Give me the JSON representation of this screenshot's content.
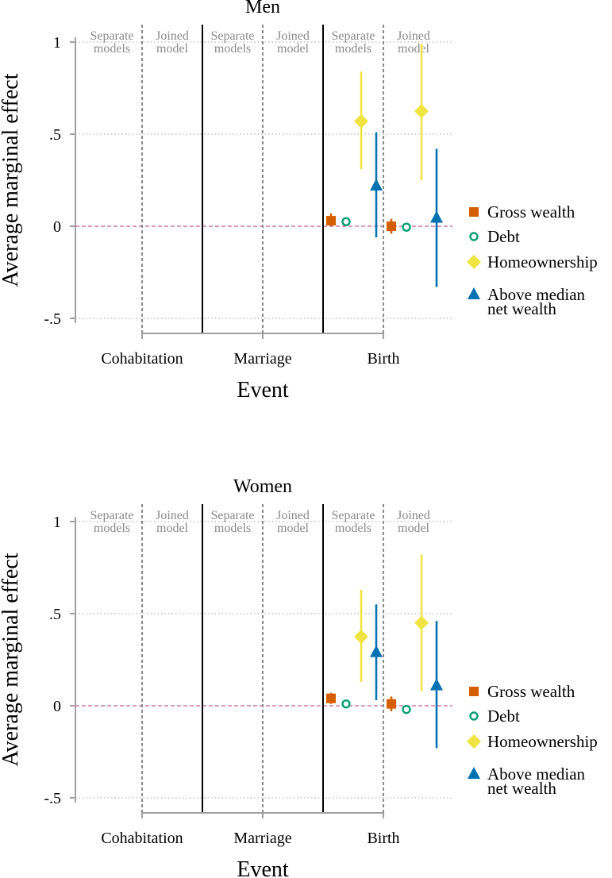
{
  "colors": {
    "gross": "#d55e00",
    "debt": "#009e73",
    "home": "#f0e442",
    "above": "#0072b2",
    "zero_line": "#cc79a7",
    "axis": "#a0a0a0",
    "grid": "#b4b4b4",
    "dotted_divider": "#8a8a8a",
    "solid_divider": "#000000"
  },
  "legend": {
    "gross": "Gross wealth",
    "debt": "Debt",
    "home": "Homeownership",
    "above_line1": "Above median",
    "above_line2": "net wealth"
  },
  "chart_data": [
    {
      "type": "scatter",
      "title": "Men",
      "ylabel": "Average marginal effect",
      "xlabel": "Event",
      "ylim": [
        -0.5,
        1
      ],
      "yticks": [
        {
          "value": 1,
          "label": "1"
        },
        {
          "value": 0.5,
          "label": ".5"
        },
        {
          "value": 0,
          "label": "0"
        },
        {
          "value": -0.5,
          "label": "-.5"
        }
      ],
      "categories": [
        "Cohabitation",
        "Marriage",
        "Birth"
      ],
      "segment_labels": [
        {
          "line1": "Separate",
          "line2": "models"
        },
        {
          "line1": "Joined",
          "line2": "model"
        },
        {
          "line1": "Separate",
          "line2": "models"
        },
        {
          "line1": "Joined",
          "line2": "model"
        },
        {
          "line1": "Separate",
          "line2": "models"
        },
        {
          "line1": "Joined",
          "line2": "model"
        }
      ],
      "series": [
        {
          "name": "Gross wealth",
          "key": "gross",
          "marker": "square",
          "points": [
            {
              "segment": 5,
              "y": 0.03,
              "ci": [
                0.0,
                0.07
              ]
            },
            {
              "segment": 6,
              "y": 0.0,
              "ci": [
                -0.04,
                0.04
              ]
            }
          ]
        },
        {
          "name": "Debt",
          "key": "debt",
          "marker": "hollow-circle",
          "points": [
            {
              "segment": 5,
              "y": 0.025,
              "ci": [
                0.01,
                0.04
              ]
            },
            {
              "segment": 6,
              "y": -0.005,
              "ci": [
                -0.02,
                0.01
              ]
            }
          ]
        },
        {
          "name": "Homeownership",
          "key": "home",
          "marker": "diamond",
          "points": [
            {
              "segment": 5,
              "y": 0.57,
              "ci": [
                0.31,
                0.84
              ]
            },
            {
              "segment": 6,
              "y": 0.625,
              "ci": [
                0.25,
                0.99
              ]
            }
          ]
        },
        {
          "name": "Above median net wealth",
          "key": "above",
          "marker": "triangle",
          "points": [
            {
              "segment": 5,
              "y": 0.22,
              "ci": [
                -0.06,
                0.51
              ]
            },
            {
              "segment": 6,
              "y": 0.045,
              "ci": [
                -0.33,
                0.42
              ]
            }
          ]
        }
      ]
    },
    {
      "type": "scatter",
      "title": "Women",
      "ylabel": "Average marginal effect",
      "xlabel": "Event",
      "ylim": [
        -0.5,
        1
      ],
      "yticks": [
        {
          "value": 1,
          "label": "1"
        },
        {
          "value": 0.5,
          "label": ".5"
        },
        {
          "value": 0,
          "label": "0"
        },
        {
          "value": -0.5,
          "label": "-.5"
        }
      ],
      "categories": [
        "Cohabitation",
        "Marriage",
        "Birth"
      ],
      "segment_labels": [
        {
          "line1": "Separate",
          "line2": "models"
        },
        {
          "line1": "Joined",
          "line2": "model"
        },
        {
          "line1": "Separate",
          "line2": "models"
        },
        {
          "line1": "Joined",
          "line2": "model"
        },
        {
          "line1": "Separate",
          "line2": "models"
        },
        {
          "line1": "Joined",
          "line2": "model"
        }
      ],
      "series": [
        {
          "name": "Gross wealth",
          "key": "gross",
          "marker": "square",
          "points": [
            {
              "segment": 5,
              "y": 0.04,
              "ci": [
                0.01,
                0.07
              ]
            },
            {
              "segment": 6,
              "y": 0.01,
              "ci": [
                -0.03,
                0.05
              ]
            }
          ]
        },
        {
          "name": "Debt",
          "key": "debt",
          "marker": "hollow-circle",
          "points": [
            {
              "segment": 5,
              "y": 0.01,
              "ci": [
                0.0,
                0.02
              ]
            },
            {
              "segment": 6,
              "y": -0.02,
              "ci": [
                -0.04,
                0.0
              ]
            }
          ]
        },
        {
          "name": "Homeownership",
          "key": "home",
          "marker": "diamond",
          "points": [
            {
              "segment": 5,
              "y": 0.375,
              "ci": [
                0.13,
                0.63
              ]
            },
            {
              "segment": 6,
              "y": 0.45,
              "ci": [
                0.08,
                0.82
              ]
            }
          ]
        },
        {
          "name": "Above median net wealth",
          "key": "above",
          "marker": "triangle",
          "points": [
            {
              "segment": 5,
              "y": 0.29,
              "ci": [
                0.03,
                0.55
              ]
            },
            {
              "segment": 6,
              "y": 0.11,
              "ci": [
                -0.23,
                0.46
              ]
            }
          ]
        }
      ]
    }
  ]
}
